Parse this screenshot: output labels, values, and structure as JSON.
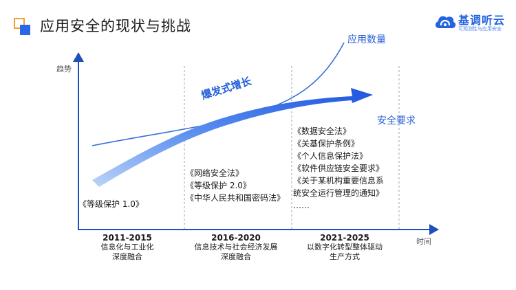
{
  "title": "应用安全的现状与挑战",
  "brand": {
    "name": "基调听云",
    "slogan": "可观测性与应用安全",
    "color": "#2563e0"
  },
  "axis": {
    "y_label": "趋势",
    "x_label": "时间"
  },
  "series_labels": {
    "apps": "应用数量",
    "security": "安全要求"
  },
  "growth_label": "爆发式增长",
  "periods": [
    {
      "years": "2011-2015",
      "lines": [
        "信息化与工业化",
        "深度融合"
      ],
      "laws": [
        "《等级保护 1.0》"
      ]
    },
    {
      "years": "2016-2020",
      "lines": [
        "信息技术与社会经济发展",
        "深度融合"
      ],
      "laws": [
        "《网络安全法》",
        "《等级保护 2.0》",
        "《中华人民共和国密码法》"
      ]
    },
    {
      "years": "2021-2025",
      "lines": [
        "以数字化转型整体驱动",
        "生产方式"
      ],
      "laws": [
        "《数据安全法》",
        "《关基保护条例》",
        "《个人信息保护法》",
        "《软件供应链安全要求》",
        "《关于某机构重要信息系",
        "统安全运行管理的通知》",
        "……"
      ]
    }
  ],
  "colors": {
    "accent": "#2a66e8",
    "title_square": "#f0a030",
    "curve": "#3a6fd8",
    "axis": "#1f4fb8"
  }
}
